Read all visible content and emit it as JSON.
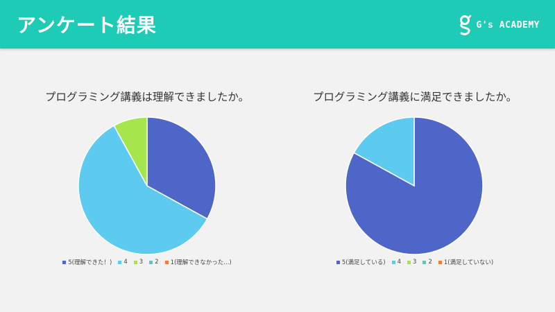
{
  "header": {
    "title": "アンケート結果",
    "brand": "G's ACADEMY",
    "background": "#1ecbb6"
  },
  "chart_data": [
    {
      "type": "pie",
      "title": "プログラミング講義は理解できましたか。",
      "categories": [
        "5(理解できた！)",
        "4",
        "3",
        "2",
        "1(理解できなかった...)"
      ],
      "values": [
        33,
        59,
        8,
        0,
        0
      ],
      "colors": [
        "#4e66c8",
        "#5dcbef",
        "#a5e64d",
        "#5ec6c2",
        "#f07d3b"
      ],
      "legend_position": "bottom"
    },
    {
      "type": "pie",
      "title": "プログラミング講義に満足できましたか。",
      "categories": [
        "5(満足している)",
        "4",
        "3",
        "2",
        "1(満足していない)"
      ],
      "values": [
        83,
        17,
        0,
        0,
        0
      ],
      "colors": [
        "#4e66c8",
        "#5dcbef",
        "#a5e64d",
        "#5ec6c2",
        "#f07d3b"
      ],
      "legend_position": "bottom"
    }
  ]
}
